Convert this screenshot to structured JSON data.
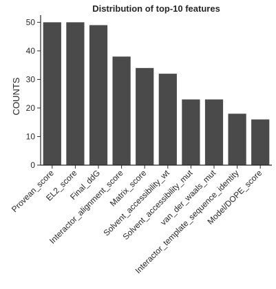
{
  "chart_data": {
    "type": "bar",
    "title": "Distribution of top-10 features",
    "xlabel": "",
    "ylabel": "COUNTS",
    "ylim": [
      0,
      52.5
    ],
    "yticks": [
      0,
      10,
      20,
      30,
      40,
      50
    ],
    "categories": [
      "Provean_score",
      "EL2_score",
      "Final_ddG",
      "Interactor_alignment_score",
      "Matrix_score",
      "Solvent_accessibility_wt",
      "Solvent_accessibility_mut",
      "van_der_waals_mut",
      "Interactor_template_sequence_identity",
      "Model/DOPE_score"
    ],
    "values": [
      50,
      50,
      49,
      38,
      34,
      32,
      23,
      23,
      18,
      16
    ],
    "bar_color": "#4a4a4a",
    "grid": false
  }
}
